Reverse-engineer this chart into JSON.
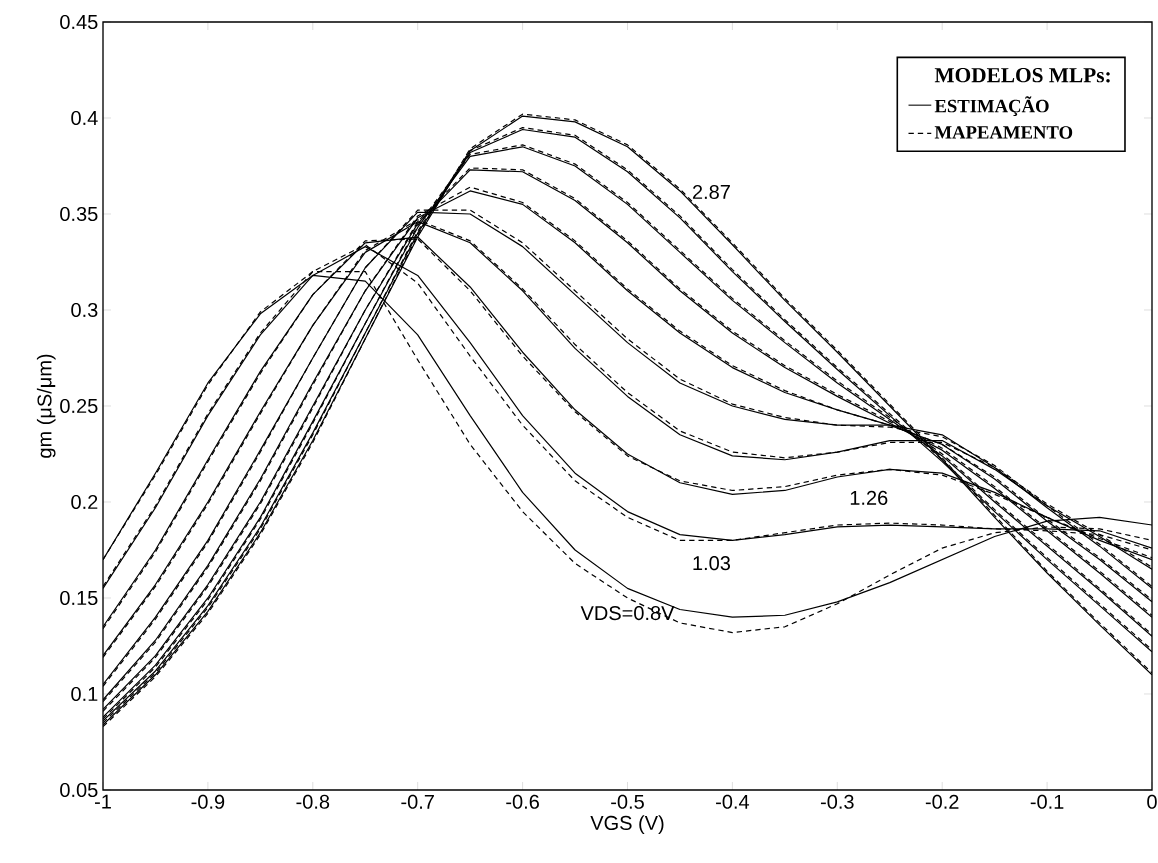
{
  "chart_data": {
    "type": "line",
    "xlabel": "VGS (V)",
    "ylabel": "gm (μS/μm)",
    "legend_title": "MODELOS MLPs:",
    "legend": "top right",
    "xlim": [
      -1,
      0
    ],
    "ylim": [
      0.05,
      0.45
    ],
    "xticks": [
      -1,
      -0.9,
      -0.8,
      -0.7,
      -0.6,
      -0.5,
      -0.4,
      -0.3,
      -0.2,
      -0.1,
      0
    ],
    "yticks": [
      0.05,
      0.1,
      0.15,
      0.2,
      0.25,
      0.3,
      0.35,
      0.4,
      0.45
    ],
    "x": [
      -1,
      -0.95,
      -0.9,
      -0.85,
      -0.8,
      -0.75,
      -0.7,
      -0.65,
      -0.6,
      -0.55,
      -0.5,
      -0.45,
      -0.4,
      -0.35,
      -0.3,
      -0.25,
      -0.2,
      -0.15,
      -0.1,
      -0.05,
      0
    ],
    "series": [
      {
        "name": "ESTIMAÇÃO",
        "color": "#000000",
        "line_style": "solid",
        "values": [
          0.17,
          0.215,
          0.262,
          0.298,
          0.318,
          0.315,
          0.287,
          0.245,
          0.205,
          0.175,
          0.155,
          0.144,
          0.14,
          0.141,
          0.148,
          0.158,
          0.17,
          0.182,
          0.19,
          0.192,
          0.188
        ]
      },
      {
        "color": "#000000",
        "line_style": "solid",
        "values": [
          0.155,
          0.197,
          0.245,
          0.287,
          0.318,
          0.333,
          0.318,
          0.283,
          0.245,
          0.215,
          0.195,
          0.183,
          0.18,
          0.183,
          0.187,
          0.188,
          0.187,
          0.186,
          0.186,
          0.185,
          0.176
        ]
      },
      {
        "color": "#000000",
        "line_style": "solid",
        "values": [
          0.135,
          0.175,
          0.222,
          0.268,
          0.308,
          0.335,
          0.338,
          0.312,
          0.278,
          0.248,
          0.225,
          0.21,
          0.204,
          0.206,
          0.213,
          0.217,
          0.215,
          0.205,
          0.192,
          0.18,
          0.17
        ]
      },
      {
        "color": "#000000",
        "line_style": "solid",
        "values": [
          0.12,
          0.157,
          0.2,
          0.247,
          0.292,
          0.33,
          0.346,
          0.335,
          0.31,
          0.28,
          0.255,
          0.235,
          0.224,
          0.222,
          0.226,
          0.232,
          0.232,
          0.217,
          0.198,
          0.182,
          0.165
        ]
      },
      {
        "color": "#000000",
        "line_style": "solid",
        "values": [
          0.105,
          0.14,
          0.18,
          0.227,
          0.275,
          0.322,
          0.351,
          0.35,
          0.333,
          0.308,
          0.283,
          0.262,
          0.25,
          0.243,
          0.24,
          0.24,
          0.235,
          0.218,
          0.197,
          0.177,
          0.155
        ]
      },
      {
        "color": "#000000",
        "line_style": "solid",
        "values": [
          0.097,
          0.128,
          0.167,
          0.212,
          0.262,
          0.31,
          0.348,
          0.362,
          0.355,
          0.335,
          0.31,
          0.288,
          0.27,
          0.257,
          0.248,
          0.24,
          0.23,
          0.212,
          0.19,
          0.17,
          0.148
        ]
      },
      {
        "color": "#000000",
        "line_style": "solid",
        "values": [
          0.092,
          0.12,
          0.157,
          0.2,
          0.25,
          0.3,
          0.345,
          0.373,
          0.372,
          0.357,
          0.335,
          0.31,
          0.288,
          0.27,
          0.255,
          0.241,
          0.227,
          0.207,
          0.185,
          0.163,
          0.14
        ]
      },
      {
        "color": "#000000",
        "line_style": "solid",
        "values": [
          0.088,
          0.115,
          0.15,
          0.192,
          0.242,
          0.293,
          0.343,
          0.38,
          0.385,
          0.375,
          0.355,
          0.33,
          0.305,
          0.283,
          0.262,
          0.243,
          0.224,
          0.2,
          0.177,
          0.154,
          0.13
        ]
      },
      {
        "color": "#000000",
        "line_style": "solid",
        "values": [
          0.086,
          0.112,
          0.146,
          0.187,
          0.236,
          0.288,
          0.34,
          0.382,
          0.394,
          0.39,
          0.372,
          0.348,
          0.32,
          0.294,
          0.269,
          0.245,
          0.221,
          0.195,
          0.17,
          0.146,
          0.122
        ]
      },
      {
        "color": "#000000",
        "line_style": "solid",
        "values": [
          0.084,
          0.11,
          0.143,
          0.184,
          0.232,
          0.285,
          0.338,
          0.383,
          0.401,
          0.398,
          0.385,
          0.362,
          0.334,
          0.305,
          0.278,
          0.25,
          0.222,
          0.192,
          0.163,
          0.136,
          0.11
        ]
      },
      {
        "name": "MAPEAMENTO",
        "color": "#000000",
        "line_style": "dashed",
        "values": [
          0.17,
          0.214,
          0.261,
          0.299,
          0.32,
          0.32,
          0.274,
          0.23,
          0.195,
          0.168,
          0.15,
          0.137,
          0.132,
          0.135,
          0.147,
          0.162,
          0.176,
          0.184,
          0.187,
          0.186,
          0.18
        ]
      },
      {
        "color": "#000000",
        "line_style": "dashed",
        "values": [
          0.156,
          0.198,
          0.246,
          0.288,
          0.32,
          0.334,
          0.314,
          0.276,
          0.24,
          0.211,
          0.192,
          0.18,
          0.18,
          0.184,
          0.188,
          0.189,
          0.188,
          0.186,
          0.185,
          0.183,
          0.175
        ]
      },
      {
        "color": "#000000",
        "line_style": "dashed",
        "values": [
          0.134,
          0.174,
          0.221,
          0.267,
          0.308,
          0.336,
          0.337,
          0.31,
          0.276,
          0.247,
          0.224,
          0.211,
          0.206,
          0.208,
          0.214,
          0.217,
          0.214,
          0.204,
          0.192,
          0.181,
          0.171
        ]
      },
      {
        "color": "#000000",
        "line_style": "dashed",
        "values": [
          0.119,
          0.156,
          0.199,
          0.246,
          0.292,
          0.331,
          0.347,
          0.336,
          0.311,
          0.282,
          0.257,
          0.237,
          0.226,
          0.223,
          0.226,
          0.231,
          0.231,
          0.218,
          0.199,
          0.183,
          0.166
        ]
      },
      {
        "color": "#000000",
        "line_style": "dashed",
        "values": [
          0.104,
          0.139,
          0.179,
          0.226,
          0.275,
          0.322,
          0.352,
          0.352,
          0.335,
          0.31,
          0.285,
          0.264,
          0.251,
          0.244,
          0.24,
          0.239,
          0.234,
          0.219,
          0.198,
          0.178,
          0.156
        ]
      },
      {
        "color": "#000000",
        "line_style": "dashed",
        "values": [
          0.096,
          0.127,
          0.166,
          0.211,
          0.261,
          0.31,
          0.349,
          0.364,
          0.356,
          0.336,
          0.311,
          0.289,
          0.271,
          0.258,
          0.248,
          0.24,
          0.23,
          0.213,
          0.191,
          0.171,
          0.149
        ]
      },
      {
        "color": "#000000",
        "line_style": "dashed",
        "values": [
          0.091,
          0.119,
          0.156,
          0.199,
          0.249,
          0.3,
          0.346,
          0.374,
          0.373,
          0.358,
          0.336,
          0.311,
          0.289,
          0.271,
          0.256,
          0.242,
          0.228,
          0.208,
          0.186,
          0.164,
          0.141
        ]
      },
      {
        "color": "#000000",
        "line_style": "dashed",
        "values": [
          0.087,
          0.114,
          0.149,
          0.191,
          0.241,
          0.293,
          0.344,
          0.381,
          0.386,
          0.376,
          0.356,
          0.331,
          0.306,
          0.284,
          0.263,
          0.244,
          0.225,
          0.201,
          0.178,
          0.155,
          0.131
        ]
      },
      {
        "color": "#000000",
        "line_style": "dashed",
        "values": [
          0.085,
          0.111,
          0.145,
          0.186,
          0.235,
          0.288,
          0.341,
          0.383,
          0.395,
          0.391,
          0.373,
          0.349,
          0.321,
          0.295,
          0.27,
          0.246,
          0.222,
          0.196,
          0.171,
          0.147,
          0.123
        ]
      },
      {
        "color": "#000000",
        "line_style": "dashed",
        "values": [
          0.083,
          0.109,
          0.142,
          0.183,
          0.231,
          0.285,
          0.339,
          0.384,
          0.402,
          0.399,
          0.386,
          0.363,
          0.335,
          0.306,
          0.279,
          0.251,
          0.223,
          0.193,
          0.164,
          0.137,
          0.111
        ]
      }
    ],
    "annotations": [
      {
        "text": "2.87",
        "x": -0.42,
        "y": 0.35
      },
      {
        "text": "1.26",
        "x": -0.27,
        "y": 0.215
      },
      {
        "text": "1.03",
        "x": -0.42,
        "y": 0.181
      },
      {
        "text": "VDS=0.8V",
        "x": -0.5,
        "y": 0.155
      }
    ]
  }
}
